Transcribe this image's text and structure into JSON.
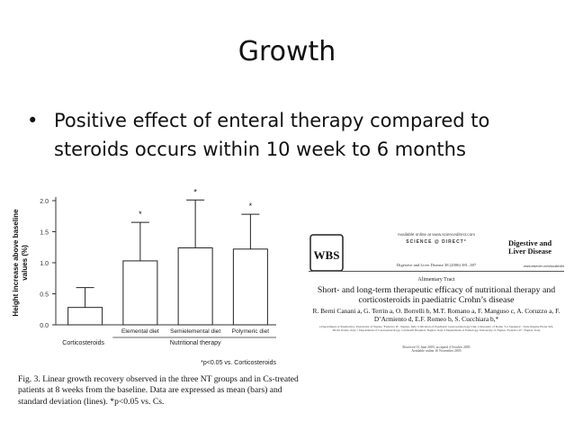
{
  "slide": {
    "title": "Growth",
    "bullet_marker": "•",
    "bullet_text": "Positive effect of enteral therapy compared to steroids occurs within 10 week to 6 months"
  },
  "chart_data": {
    "type": "bar",
    "title": "",
    "ylabel": "Height increase above baseline values (%)",
    "ylim": [
      0,
      2.0
    ],
    "yticks": [
      "0.0",
      "0.5",
      "1.0",
      "1.5",
      "2.0"
    ],
    "categories": [
      "Corticosteroids",
      "Elemental diet",
      "Semielemental diet",
      "Polymeric diet"
    ],
    "values": [
      0.28,
      1.03,
      1.24,
      1.22
    ],
    "errors": [
      0.32,
      0.62,
      0.77,
      0.56
    ],
    "significance": [
      "",
      "*",
      "*",
      "*"
    ],
    "group_labels": [
      "Corticosteroids",
      "Nutritional therapy"
    ],
    "footnote": "*p<0.05 vs. Corticosteroids"
  },
  "figure_caption": "Fig. 3.  Linear growth recovery observed in the three NT groups and in Cs-treated patients at 8 weeks from the baseline. Data are expressed as mean (bars) and standard deviation (lines). *p<0.05 vs. Cs.",
  "paper": {
    "logo_text": "WBS",
    "available_online": "Available online at www.sciencedirect.com",
    "sciencedirect": "SCIENCE @ DIRECT°",
    "journal_name": "Digestive and Liver Disease",
    "journal_url": "www.elsevier.com/locate/dld",
    "citation": "Digestive and Liver Disease 38 (2006) 381–387",
    "section": "Alimentary Tract",
    "title": "Short- and long-term therapeutic efficacy of nutritional therapy and corticosteroids in paediatric Crohn’s disease",
    "authors": "R. Berni Canani a, G. Terrin a, O. Borrelli b, M.T. Romano a, F. Manguso c, A. Coruzzo a, F. D’Armiento d, E.F. Romeo b, S. Cucchiara b,*",
    "affiliations": "a Department of Paediatrics, University of Naples ‘Federico II’, Naples, Italy   b Division of Paediatric Gastroenterology Unit, University of Rome ‘La Sapienza’, Viale Regina Elena 324, 00161 Rome, Italy   c Department of Gastroenterology, Cardarelli Hospital, Naples, Italy   d Department of Pathology, University of Naples ‘Federico II’, Naples, Italy",
    "received": "Received 13 June 2005; accepted 4 October 2005",
    "available": "Available online 10 November 2005"
  }
}
